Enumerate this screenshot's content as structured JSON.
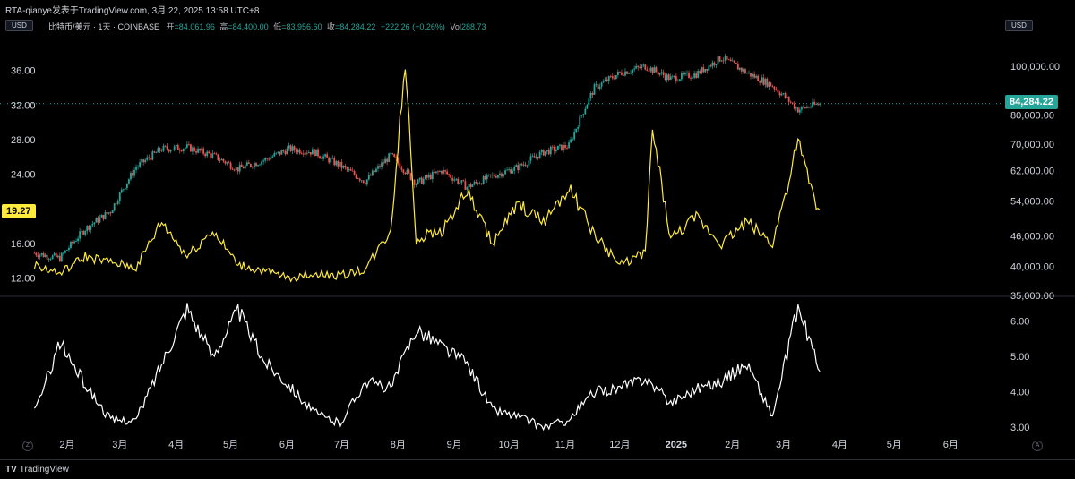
{
  "header": {
    "publisher_line": "RTA-qianye发表于TradingView.com,   3月 22, 2025 13:58 UTC+8",
    "symbol": "比特币/美元 · 1天 · COINBASE",
    "open_label": "开",
    "open_value": "=84,061.96",
    "high_label": "高",
    "high_value": "=84,400.00",
    "low_label": "低",
    "low_value": "=83,956.60",
    "close_label": "收",
    "close_value": "=84,284.22",
    "change_value": "+222.26 (+0.26%)",
    "vol_label": "Vol",
    "vol_value": "288.73",
    "currency_left": "USD",
    "currency_right": "USD"
  },
  "footer": {
    "brand": "TradingView",
    "left_button": "Z",
    "right_button": "A"
  },
  "chart_data": [
    {
      "type": "candlestick",
      "title": "比特币/美元 · 1天 · COINBASE",
      "axis": "right",
      "y_scale": "log",
      "ylim": [
        35000,
        115000
      ],
      "y_ticks": [
        35000,
        40000,
        46000,
        54000,
        62000,
        70000,
        80000,
        100000
      ],
      "y_tick_labels": [
        "35,000.00",
        "40,000.00",
        "46,000.00",
        "54,000.00",
        "62,000.00",
        "70,000.00",
        "80,000.00",
        "100,000.00"
      ],
      "last_price_label": "84,284.22",
      "up_color": "#26a69a",
      "down_color": "#ef5350",
      "series": [
        {
          "x": [
            "2024-01-14",
            "2024-01-28",
            "2024-02-11",
            "2024-02-25",
            "2024-03-10",
            "2024-03-24",
            "2024-04-07",
            "2024-04-21",
            "2024-05-05",
            "2024-05-19",
            "2024-06-02",
            "2024-06-16",
            "2024-06-30",
            "2024-07-14",
            "2024-07-28",
            "2024-08-11",
            "2024-08-25",
            "2024-09-08",
            "2024-09-22",
            "2024-10-06",
            "2024-10-20",
            "2024-11-03",
            "2024-11-17",
            "2024-12-01",
            "2024-12-15",
            "2024-12-29",
            "2025-01-12",
            "2025-01-26",
            "2025-02-09",
            "2025-02-23",
            "2025-03-09",
            "2025-03-21"
          ],
          "close": [
            42500,
            41500,
            47500,
            51500,
            63000,
            68500,
            69000,
            66500,
            62500,
            65000,
            68500,
            67500,
            63500,
            59000,
            66500,
            58500,
            62000,
            57500,
            60500,
            63000,
            67500,
            69500,
            90500,
            97000,
            100000,
            94500,
            96500,
            104000,
            97000,
            91500,
            82000,
            84284
          ]
        }
      ]
    },
    {
      "type": "line",
      "axis": "left",
      "ylim": [
        10,
        40
      ],
      "y_ticks": [
        12,
        16,
        20,
        24,
        28,
        32,
        36
      ],
      "y_tick_labels": [
        "12.00",
        "16.00",
        "20.00",
        "24.00",
        "28.00",
        "32.00",
        "36.00"
      ],
      "last_value_label": "19.27",
      "color": "#ffeb3b",
      "series": [
        {
          "x": [
            "2024-01-14",
            "2024-01-28",
            "2024-02-11",
            "2024-02-25",
            "2024-03-10",
            "2024-03-24",
            "2024-04-07",
            "2024-04-21",
            "2024-05-05",
            "2024-05-19",
            "2024-06-02",
            "2024-06-16",
            "2024-06-30",
            "2024-07-14",
            "2024-07-28",
            "2024-08-05",
            "2024-08-11",
            "2024-08-25",
            "2024-09-08",
            "2024-09-22",
            "2024-10-06",
            "2024-10-20",
            "2024-11-03",
            "2024-11-17",
            "2024-12-01",
            "2024-12-15",
            "2024-12-19",
            "2024-12-29",
            "2025-01-12",
            "2025-01-26",
            "2025-02-09",
            "2025-02-23",
            "2025-03-09",
            "2025-03-21"
          ],
          "values": [
            13.5,
            12.5,
            14.5,
            13.8,
            13.2,
            18.5,
            14.5,
            17.5,
            13.5,
            12.8,
            12.0,
            12.5,
            12.3,
            13.0,
            17.5,
            37.0,
            16.5,
            17.5,
            22.0,
            16.0,
            20.5,
            18.5,
            22.5,
            17.0,
            13.5,
            15.0,
            29.0,
            16.5,
            19.0,
            16.0,
            18.5,
            16.0,
            27.5,
            19.27
          ]
        }
      ]
    },
    {
      "type": "line",
      "pane": "lower",
      "axis": "right",
      "ylim": [
        2.8,
        6.6
      ],
      "y_ticks": [
        3,
        4,
        5,
        6
      ],
      "y_tick_labels": [
        "3.00",
        "4.00",
        "5.00",
        "6.00"
      ],
      "color": "#ffffff",
      "series": [
        {
          "x": [
            "2024-01-14",
            "2024-01-28",
            "2024-02-11",
            "2024-02-25",
            "2024-03-10",
            "2024-03-24",
            "2024-04-07",
            "2024-04-21",
            "2024-05-05",
            "2024-05-19",
            "2024-06-02",
            "2024-06-16",
            "2024-06-30",
            "2024-07-14",
            "2024-07-28",
            "2024-08-11",
            "2024-08-25",
            "2024-09-08",
            "2024-09-22",
            "2024-10-06",
            "2024-10-20",
            "2024-11-03",
            "2024-11-17",
            "2024-12-01",
            "2024-12-15",
            "2024-12-29",
            "2025-01-12",
            "2025-01-26",
            "2025-02-09",
            "2025-02-23",
            "2025-03-09",
            "2025-03-21"
          ],
          "values": [
            3.4,
            5.4,
            4.2,
            3.2,
            3.2,
            4.8,
            6.4,
            5.0,
            6.3,
            4.9,
            4.2,
            3.4,
            3.1,
            4.3,
            4.1,
            5.8,
            5.3,
            4.8,
            3.5,
            3.3,
            3.0,
            3.2,
            4.0,
            4.1,
            4.4,
            3.7,
            4.1,
            4.3,
            4.8,
            3.3,
            6.4,
            4.6
          ]
        }
      ]
    }
  ],
  "x_axis": {
    "labels": [
      "2月",
      "3月",
      "4月",
      "5月",
      "6月",
      "7月",
      "8月",
      "9月",
      "10月",
      "11月",
      "12月",
      "2025",
      "2月",
      "3月",
      "4月",
      "5月",
      "6月"
    ],
    "dates": [
      "2024-02-01",
      "2024-03-01",
      "2024-04-01",
      "2024-05-01",
      "2024-06-01",
      "2024-07-01",
      "2024-08-01",
      "2024-09-01",
      "2024-10-01",
      "2024-11-01",
      "2024-12-01",
      "2025-01-01",
      "2025-02-01",
      "2025-03-01",
      "2025-04-01",
      "2025-05-01",
      "2025-06-01"
    ]
  }
}
